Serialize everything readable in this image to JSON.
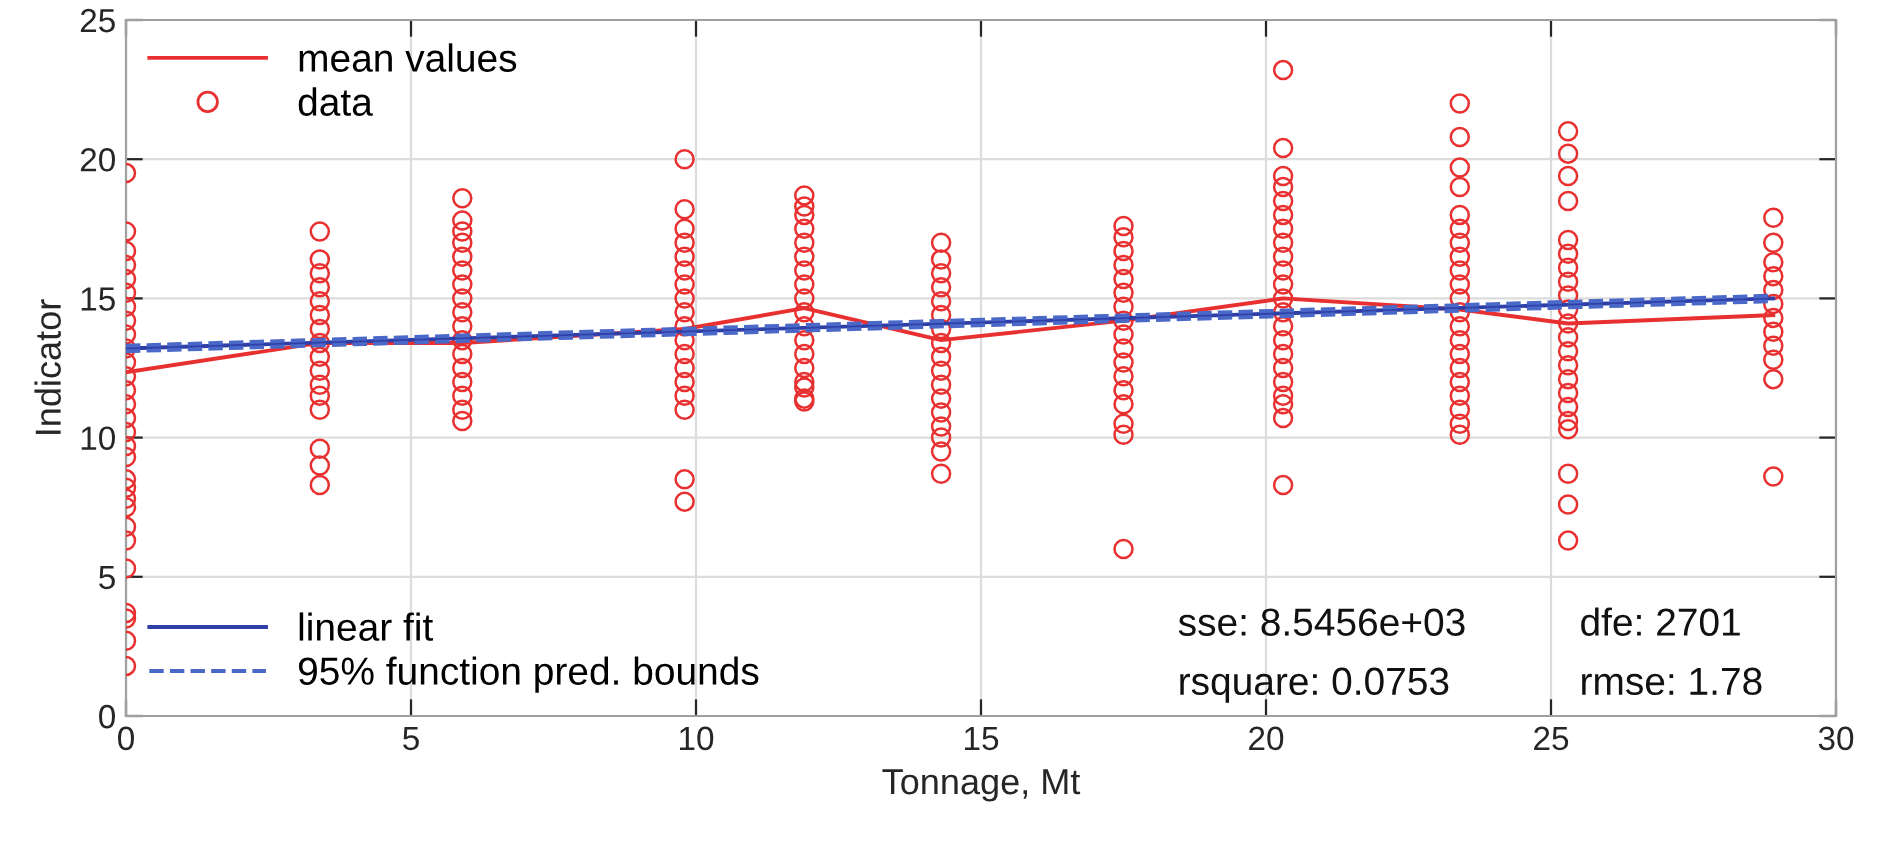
{
  "chart_data": {
    "type": "scatter",
    "xlabel": "Tonnage, Mt",
    "ylabel": "Indicator",
    "xlim": [
      0,
      30
    ],
    "xticks": [
      0,
      5,
      10,
      15,
      20,
      25,
      30
    ],
    "ylim": [
      0,
      25
    ],
    "yticks": [
      0,
      5,
      10,
      15,
      20,
      25
    ],
    "grid": true,
    "legend": [
      "top left",
      "bottom left"
    ],
    "series": [
      {
        "name": "mean values",
        "type": "line",
        "color": "#e83030",
        "marker": "none",
        "line_style": "solid",
        "x": [
          0,
          3.4,
          5.9,
          9.8,
          11.9,
          14.3,
          17.5,
          20.3,
          23.4,
          25.3,
          28.9
        ],
        "values": [
          12.35,
          13.4,
          13.4,
          13.9,
          14.65,
          13.5,
          14.2,
          15.0,
          14.6,
          14.1,
          14.4
        ]
      },
      {
        "name": "data",
        "color": "#e83030",
        "marker": "circle",
        "x": [
          0,
          0,
          0,
          0,
          0,
          0,
          0,
          0,
          0,
          0,
          0,
          0,
          0,
          0,
          0,
          0,
          0,
          0,
          0,
          0,
          0,
          0,
          0,
          0,
          0,
          0,
          0,
          0,
          0,
          3.4,
          3.4,
          3.4,
          3.4,
          3.4,
          3.4,
          3.4,
          3.4,
          3.4,
          3.4,
          3.4,
          3.4,
          3.4,
          3.4,
          3.4,
          3.4,
          5.9,
          5.9,
          5.9,
          5.9,
          5.9,
          5.9,
          5.9,
          5.9,
          5.9,
          5.9,
          5.9,
          5.9,
          5.9,
          5.9,
          5.9,
          5.9,
          5.9,
          9.8,
          9.8,
          9.8,
          9.8,
          9.8,
          9.8,
          9.8,
          9.8,
          9.8,
          9.8,
          9.8,
          9.8,
          9.8,
          9.8,
          9.8,
          9.8,
          9.8,
          9.8,
          11.9,
          11.9,
          11.9,
          11.9,
          11.9,
          11.9,
          11.9,
          11.9,
          11.9,
          11.9,
          11.9,
          11.9,
          11.9,
          11.9,
          11.9,
          11.9,
          11.9,
          11.9,
          14.3,
          14.3,
          14.3,
          14.3,
          14.3,
          14.3,
          14.3,
          14.3,
          14.3,
          14.3,
          14.3,
          14.3,
          14.3,
          14.3,
          14.3,
          14.3,
          14.3,
          17.5,
          17.5,
          17.5,
          17.5,
          17.5,
          17.5,
          17.5,
          17.5,
          17.5,
          17.5,
          17.5,
          17.5,
          17.5,
          17.5,
          17.5,
          17.5,
          17.5,
          20.3,
          20.3,
          20.3,
          20.3,
          20.3,
          20.3,
          20.3,
          20.3,
          20.3,
          20.3,
          20.3,
          20.3,
          20.3,
          20.3,
          20.3,
          20.3,
          20.3,
          20.3,
          20.3,
          20.3,
          20.3,
          20.3,
          23.4,
          23.4,
          23.4,
          23.4,
          23.4,
          23.4,
          23.4,
          23.4,
          23.4,
          23.4,
          23.4,
          23.4,
          23.4,
          23.4,
          23.4,
          23.4,
          23.4,
          23.4,
          23.4,
          23.4,
          23.4,
          25.3,
          25.3,
          25.3,
          25.3,
          25.3,
          25.3,
          25.3,
          25.3,
          25.3,
          25.3,
          25.3,
          25.3,
          25.3,
          25.3,
          25.3,
          25.3,
          25.3,
          25.3,
          25.3,
          25.3,
          25.3,
          25.3,
          28.9,
          28.9,
          28.9,
          28.9,
          28.9,
          28.9,
          28.9,
          28.9,
          28.9,
          28.9,
          28.9,
          28.9
        ],
        "values": [
          19.5,
          17.4,
          16.7,
          16.2,
          15.7,
          15.2,
          14.7,
          14.2,
          13.7,
          13.2,
          12.7,
          12.2,
          11.7,
          11.2,
          10.7,
          10.2,
          9.7,
          9.3,
          8.5,
          8.2,
          7.8,
          7.5,
          6.8,
          6.3,
          5.3,
          3.7,
          3.5,
          2.7,
          1.8,
          17.4,
          16.4,
          15.9,
          15.4,
          14.9,
          14.4,
          13.9,
          13.4,
          12.9,
          12.4,
          11.9,
          11.5,
          11.0,
          9.6,
          9.0,
          8.3,
          18.6,
          17.8,
          17.4,
          17.0,
          16.5,
          16.0,
          15.5,
          15.0,
          14.5,
          14.0,
          13.5,
          13.0,
          12.5,
          12.0,
          11.5,
          11.0,
          10.6,
          20.0,
          18.2,
          17.5,
          17.0,
          16.5,
          16.0,
          15.5,
          15.0,
          14.5,
          14.0,
          13.5,
          13.0,
          12.5,
          12.0,
          11.5,
          11.0,
          8.5,
          7.7,
          18.7,
          18.3,
          18.0,
          17.5,
          17.0,
          16.5,
          16.0,
          15.5,
          15.0,
          14.5,
          14.0,
          13.5,
          13.0,
          12.5,
          12.0,
          11.8,
          11.4,
          11.3,
          17.0,
          16.4,
          15.9,
          15.4,
          14.9,
          14.4,
          13.9,
          13.4,
          12.9,
          12.4,
          11.9,
          11.4,
          10.9,
          10.4,
          10.0,
          9.5,
          8.7,
          17.6,
          17.2,
          16.7,
          16.2,
          15.7,
          15.2,
          14.7,
          14.2,
          13.7,
          13.2,
          12.7,
          12.2,
          11.7,
          11.2,
          10.5,
          10.1,
          6.0,
          23.2,
          20.4,
          19.4,
          19.0,
          18.5,
          18.0,
          17.5,
          17.0,
          16.5,
          16.0,
          15.5,
          15.0,
          14.5,
          14.0,
          13.5,
          13.0,
          12.5,
          12.0,
          11.5,
          11.2,
          10.7,
          8.3,
          22.0,
          20.8,
          19.7,
          19.0,
          18.0,
          17.5,
          17.0,
          16.5,
          16.0,
          15.5,
          15.0,
          14.5,
          14.0,
          13.5,
          13.0,
          12.5,
          12.0,
          11.5,
          11.0,
          10.5,
          10.1,
          21.0,
          20.2,
          19.4,
          18.5,
          17.1,
          16.6,
          16.1,
          15.6,
          15.1,
          14.6,
          14.1,
          13.6,
          13.1,
          12.6,
          12.1,
          11.6,
          11.1,
          10.6,
          10.3,
          8.7,
          7.6,
          6.3,
          17.9,
          17.0,
          16.3,
          15.8,
          15.3,
          14.8,
          14.3,
          13.8,
          13.3,
          12.8,
          12.1,
          8.6
        ]
      },
      {
        "name": "linear fit",
        "type": "line",
        "color": "#2f3fa8",
        "marker": "none",
        "line_style": "solid",
        "x": [
          0,
          28.9
        ],
        "values": [
          13.2,
          15.0
        ]
      },
      {
        "name": "95% function pred. bounds",
        "type": "line",
        "color": "#4a68c8",
        "marker": "none",
        "line_style": "dashed",
        "x": [
          0,
          28.9
        ],
        "values": [
          13.3,
          15.1
        ]
      },
      {
        "type": "line",
        "color": "#4a68c8",
        "marker": "none",
        "line_style": "dashed",
        "x": [
          0,
          28.9
        ],
        "values": [
          13.1,
          14.9
        ]
      }
    ],
    "annotations": [
      "sse: 8.5456e+03",
      "rsquare: 0.0753",
      "dfe: 2701",
      "rmse: 1.78"
    ]
  }
}
